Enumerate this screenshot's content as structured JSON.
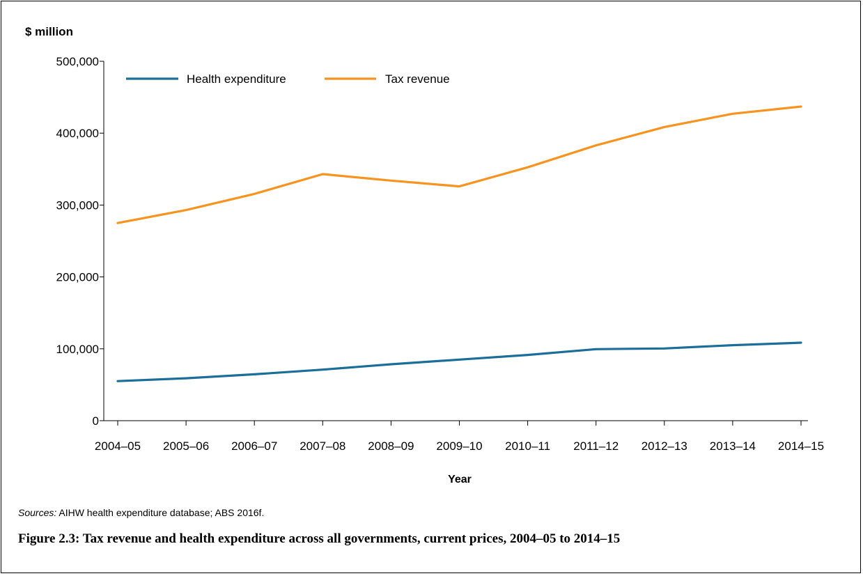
{
  "chart_data": {
    "type": "line",
    "ylabel": "$ million",
    "xlabel": "Year",
    "ylim": [
      0,
      500000
    ],
    "yticks": [
      0,
      100000,
      200000,
      300000,
      400000,
      500000
    ],
    "ytick_labels": [
      "0",
      "100,000",
      "200,000",
      "300,000",
      "400,000",
      "500,000"
    ],
    "categories": [
      "2004–05",
      "2005–06",
      "2006–07",
      "2007–08",
      "2008–09",
      "2009–10",
      "2010–11",
      "2011–12",
      "2012–13",
      "2013–14",
      "2014–15"
    ],
    "series": [
      {
        "name": "Health expenditure",
        "color": "#1a6e99",
        "values": [
          55000,
          59000,
          64500,
          71000,
          78500,
          85000,
          91500,
          99500,
          100500,
          105000,
          108500
        ]
      },
      {
        "name": "Tax revenue",
        "color": "#f7931e",
        "values": [
          275000,
          293000,
          315500,
          343000,
          334000,
          326000,
          352500,
          383000,
          408500,
          427000,
          437000
        ]
      }
    ],
    "legend_position": "top-left",
    "grid": false
  },
  "source": {
    "label": "Sources:",
    "text": " AIHW health expenditure database; ABS 2016f."
  },
  "caption": "Figure 2.3: Tax revenue and health expenditure across all governments, current prices, 2004–05 to 2014–15"
}
